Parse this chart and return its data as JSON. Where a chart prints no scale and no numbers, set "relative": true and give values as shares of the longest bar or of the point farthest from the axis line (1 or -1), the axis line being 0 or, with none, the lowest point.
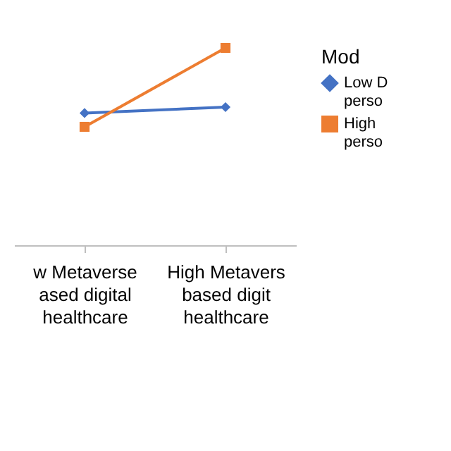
{
  "chart_data": {
    "type": "line",
    "relative": true,
    "legend_title": "Mod",
    "legend": "right",
    "categories": [
      "w Metaverse\nased digital\nhealthcare",
      "High Metavers\nbased digit\nhealthcare"
    ],
    "series": [
      {
        "name": "Low D\nperso",
        "color": "#4472c4",
        "marker": "diamond",
        "values": [
          0.67,
          0.7
        ]
      },
      {
        "name": "High\nperso",
        "color": "#ed7d31",
        "marker": "square",
        "values": [
          0.6,
          1
        ]
      }
    ]
  }
}
